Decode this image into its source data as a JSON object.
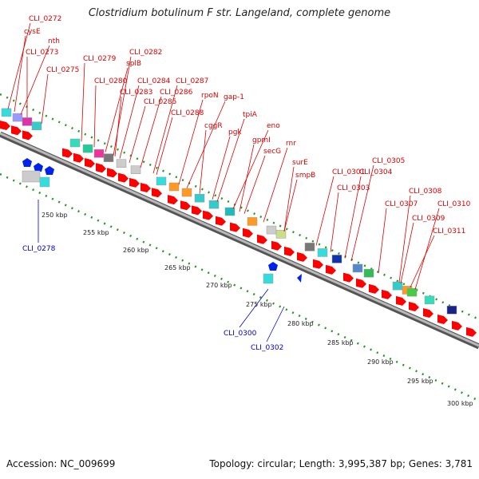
{
  "title": "Clostridium botulinum F str. Langeland, complete genome",
  "footer": {
    "accession": "Accession: NC_009699",
    "topology": "Topology: circular; Length: 3,995,387 bp; Genes: 3,781"
  },
  "colors": {
    "forward_label": "#dd0000",
    "reverse_label": "#0000cc",
    "arrow": "#ff0000",
    "backbone": "#888888",
    "dots": "#229922"
  },
  "ticks": [
    "250 kbp",
    "255 kbp",
    "260 kbp",
    "265 kbp",
    "270 kbp",
    "275 kbp",
    "280 kbp",
    "285 kbp",
    "290 kbp",
    "295 kbp",
    "300 kbp"
  ],
  "genes_forward": [
    "CLI_0272",
    "cysE",
    "nth",
    "CLI_0273",
    "CLI_0275",
    "CLI_0279",
    "splB",
    "CLI_0282",
    "CLI_0280",
    "CLI_0284",
    "CLI_0287",
    "CLI_0283",
    "CLI_0286",
    "CLI_0285",
    "rpoN",
    "gap-1",
    "CLI_0288",
    "cggR",
    "tpiA",
    "pgk",
    "eno",
    "gpmI",
    "rnr",
    "secG",
    "surE",
    "smpB",
    "CLI_0301",
    "CLI_0305",
    "CLI_0304",
    "CLI_0303",
    "CLI_0308",
    "CLI_0307",
    "CLI_0310",
    "CLI_0309",
    "CLI_0311"
  ],
  "genes_reverse": [
    "CLI_0278",
    "CLI_0300",
    "CLI_0302"
  ]
}
